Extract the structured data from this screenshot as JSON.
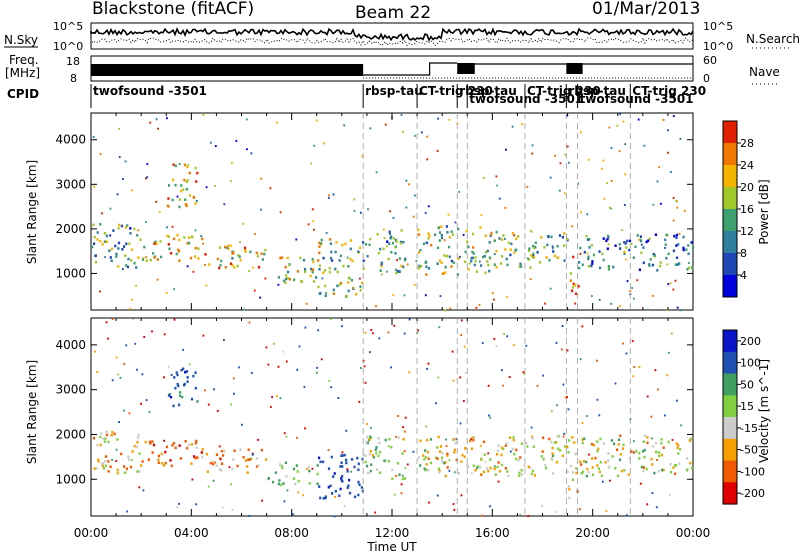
{
  "header": {
    "site": "Blackstone (fitACF)",
    "beam": "Beam 22",
    "date": "01/Mar/2013"
  },
  "aux_labels": {
    "nsky": "N.Sky",
    "freq_line1": "Freq.",
    "freq_line2": "[MHz]",
    "cpid": "CPID",
    "nsearch": "N.Search",
    "nave": "Nave",
    "nsky_ticks": [
      "10^5",
      "10^0"
    ],
    "nsearch_ticks": [
      "10^5",
      "10^0"
    ],
    "freq_ticks": [
      "18",
      "8"
    ],
    "nave_ticks": [
      "60",
      "0"
    ]
  },
  "cpid_segments": [
    {
      "label": "twofsound -3501",
      "start_hour": 0.0,
      "end_hour": 10.85
    },
    {
      "label": "rbsp-tau",
      "start_hour": 10.85,
      "end_hour": 13.0
    },
    {
      "label": "CT-trig 230",
      "start_hour": 13.0,
      "end_hour": 14.6
    },
    {
      "label": "rbsp-tau",
      "start_hour": 14.6,
      "end_hour": 15.0
    },
    {
      "label": "twofsound -3501",
      "start_hour": 15.0,
      "end_hour": 17.3
    },
    {
      "label": "CT-trig 230",
      "start_hour": 17.3,
      "end_hour": 18.95
    },
    {
      "label": "rbsp-tau",
      "start_hour": 18.95,
      "end_hour": 19.4
    },
    {
      "label": "twofsound -3501",
      "start_hour": 19.4,
      "end_hour": 21.5
    },
    {
      "label": "CT-trig 230",
      "start_hour": 21.5,
      "end_hour": 24.0
    }
  ],
  "chart_data": [
    {
      "type": "heatmap",
      "name": "power",
      "ylabel": "Slant Range [km]",
      "xlabel": "Time UT",
      "colorbar_label": "Power [dB]",
      "x_ticks": [
        "00:00",
        "04:00",
        "08:00",
        "12:00",
        "16:00",
        "20:00",
        "00:00"
      ],
      "x_range_hours": [
        0,
        24
      ],
      "y_ticks": [
        1000,
        2000,
        3000,
        4000
      ],
      "ylim": [
        180,
        4600
      ],
      "colorbar_ticks": [
        4,
        8,
        12,
        16,
        20,
        24,
        28
      ],
      "colorbar_range": [
        0,
        30
      ],
      "colors": [
        "#0000dd",
        "#1e46b4",
        "#2e7ea0",
        "#3fa070",
        "#a0c828",
        "#f5b400",
        "#f07800",
        "#e02000"
      ],
      "scatter_regions": [
        {
          "hour_start": 0.0,
          "hour_end": 2.0,
          "range_low": 1150,
          "range_high": 2150,
          "level": 12
        },
        {
          "hour_start": 2.0,
          "hour_end": 4.5,
          "range_low": 1300,
          "range_high": 1900,
          "level": 21
        },
        {
          "hour_start": 3.0,
          "hour_end": 4.2,
          "range_low": 2500,
          "range_high": 3500,
          "level": 19
        },
        {
          "hour_start": 4.5,
          "hour_end": 7.0,
          "range_low": 1150,
          "range_high": 1700,
          "level": 20
        },
        {
          "hour_start": 7.0,
          "hour_end": 9.0,
          "range_low": 800,
          "range_high": 1400,
          "level": 17
        },
        {
          "hour_start": 9.0,
          "hour_end": 10.8,
          "range_low": 500,
          "range_high": 1800,
          "level": 16
        },
        {
          "hour_start": 10.8,
          "hour_end": 12.5,
          "range_low": 1000,
          "range_high": 2000,
          "level": 12
        },
        {
          "hour_start": 13.0,
          "hour_end": 16.0,
          "range_low": 1000,
          "range_high": 2100,
          "level": 15
        },
        {
          "hour_start": 16.0,
          "hour_end": 19.0,
          "range_low": 1150,
          "range_high": 2000,
          "level": 14
        },
        {
          "hour_start": 19.0,
          "hour_end": 19.4,
          "range_low": 500,
          "range_high": 1400,
          "level": 24
        },
        {
          "hour_start": 19.4,
          "hour_end": 24.0,
          "range_low": 1100,
          "range_high": 1900,
          "level": 10
        }
      ]
    },
    {
      "type": "heatmap",
      "name": "velocity",
      "ylabel": "Slant Range [km]",
      "xlabel": "Time UT",
      "colorbar_label": "Velocity [m s^-1]",
      "x_ticks": [
        "00:00",
        "04:00",
        "08:00",
        "12:00",
        "16:00",
        "20:00",
        "00:00"
      ],
      "x_range_hours": [
        0,
        24
      ],
      "y_ticks": [
        1000,
        2000,
        3000,
        4000
      ],
      "ylim": [
        180,
        4600
      ],
      "colorbar_ticks": [
        -200,
        -100,
        -50,
        -15,
        15,
        50,
        100,
        200
      ],
      "colors": [
        "#e00000",
        "#f05a00",
        "#f5a000",
        "#cccccc",
        "#80d040",
        "#3fa060",
        "#1e50b4",
        "#0a14c8"
      ],
      "scatter_regions": [
        {
          "hour_start": 0.0,
          "hour_end": 2.0,
          "range_low": 1150,
          "range_high": 2100,
          "level": -20
        },
        {
          "hour_start": 2.0,
          "hour_end": 4.5,
          "range_low": 1300,
          "range_high": 1900,
          "level": -60
        },
        {
          "hour_start": 3.0,
          "hour_end": 4.2,
          "range_low": 2600,
          "range_high": 3500,
          "level": 150
        },
        {
          "hour_start": 4.5,
          "hour_end": 7.0,
          "range_low": 1150,
          "range_high": 1700,
          "level": -40
        },
        {
          "hour_start": 7.0,
          "hour_end": 9.0,
          "range_low": 900,
          "range_high": 1400,
          "level": 40
        },
        {
          "hour_start": 9.0,
          "hour_end": 10.8,
          "range_low": 550,
          "range_high": 1600,
          "level": 160
        },
        {
          "hour_start": 10.8,
          "hour_end": 12.5,
          "range_low": 1000,
          "range_high": 2000,
          "level": 30
        },
        {
          "hour_start": 13.0,
          "hour_end": 24.0,
          "range_low": 1100,
          "range_high": 2000,
          "level": 0
        },
        {
          "hour_start": 19.0,
          "hour_end": 19.4,
          "range_low": 500,
          "range_high": 1300,
          "level": -10
        }
      ]
    }
  ]
}
